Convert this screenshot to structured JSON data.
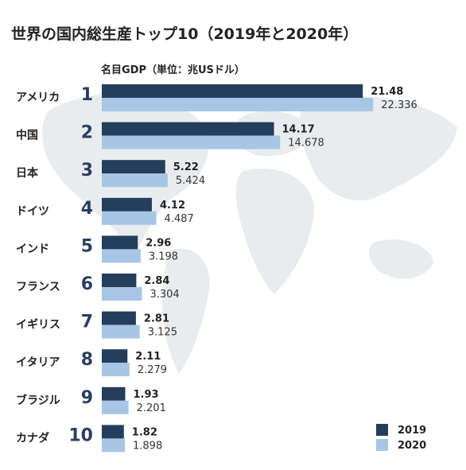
{
  "title": "世界の国内総生産トップ10（2019年と2020年）",
  "unit_label": "名目GDP（単位：兆USドル）",
  "colors": {
    "y2019": "#243e5c",
    "y2020": "#a7c6e6",
    "map": "#e9ecef"
  },
  "legend": [
    {
      "label": "2019",
      "color": "#243e5c"
    },
    {
      "label": "2020",
      "color": "#a7c6e6"
    }
  ],
  "chart_data": {
    "type": "bar",
    "orientation": "horizontal",
    "categories": [
      "アメリカ",
      "中国",
      "日本",
      "ドイツ",
      "インド",
      "フランス",
      "イギリス",
      "イタリア",
      "ブラジル",
      "カナダ"
    ],
    "ranks": [
      "1",
      "2",
      "3",
      "4",
      "5",
      "6",
      "7",
      "8",
      "9",
      "10"
    ],
    "series": [
      {
        "name": "2019",
        "values": [
          21.48,
          14.17,
          5.22,
          4.12,
          2.96,
          2.84,
          2.81,
          2.11,
          1.93,
          1.82
        ],
        "labels": [
          "21.48",
          "14.17",
          "5.22",
          "4.12",
          "2.96",
          "2.84",
          "2.81",
          "2.11",
          "1.93",
          "1.82"
        ]
      },
      {
        "name": "2020",
        "values": [
          22.336,
          14.678,
          5.424,
          4.487,
          3.198,
          3.304,
          3.125,
          2.279,
          2.201,
          1.898
        ],
        "labels": [
          "22.336",
          "14.678",
          "5.424",
          "4.487",
          "3.198",
          "3.304",
          "3.125",
          "2.279",
          "2.201",
          "1.898"
        ]
      }
    ],
    "xlim": [
      0,
      25
    ]
  }
}
